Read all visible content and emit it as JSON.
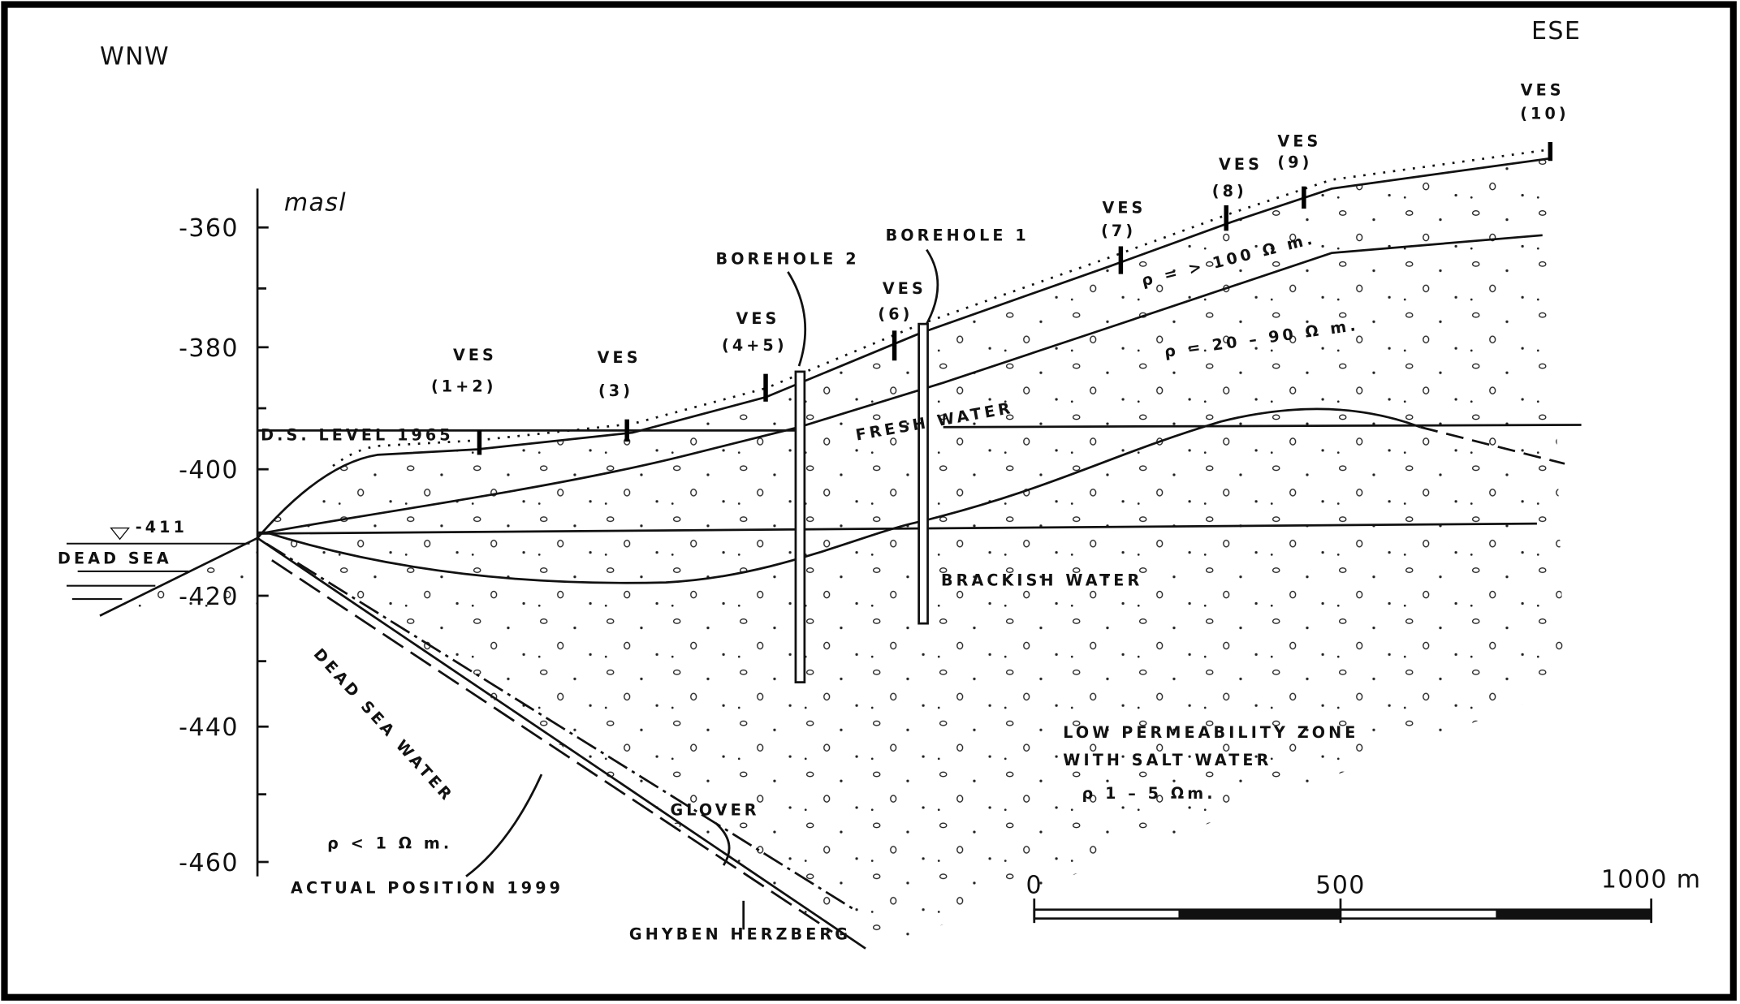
{
  "direction": {
    "left": "WNW",
    "right": "ESE"
  },
  "axis": {
    "unit": "masl",
    "ticks": [
      "-360",
      "-380",
      "-400",
      "-420",
      "-440",
      "-460"
    ]
  },
  "ves": [
    {
      "name": "VES",
      "id": "(1+2)"
    },
    {
      "name": "VES",
      "id": "(3)"
    },
    {
      "name": "VES",
      "id": "(4+5)"
    },
    {
      "name": "VES",
      "id": "(6)"
    },
    {
      "name": "VES",
      "id": "(7)"
    },
    {
      "name": "VES",
      "id": "(8)"
    },
    {
      "name": "VES",
      "id": "(9)"
    },
    {
      "name": "VES",
      "id": "(10)"
    }
  ],
  "boreholes": [
    "BOREHOLE 2",
    "BOREHOLE 1"
  ],
  "sea": {
    "level_label": "D.S. LEVEL 1965",
    "level": "-411",
    "name": "DEAD SEA"
  },
  "zones": {
    "fresh": "FRESH WATER",
    "brackish": "BRACKISH WATER",
    "dead_sea_water": "DEAD SEA WATER",
    "low_perm": [
      "LOW PERMEABILITY ZONE",
      "WITH SALT WATER",
      "ρ 1 – 5 Ωm."
    ]
  },
  "resistivity": [
    "ρ = > 100 Ω m.",
    "ρ = 20 – 90 Ω m.",
    "ρ < 1 Ω m."
  ],
  "interfaces": [
    "GLOVER",
    "ACTUAL POSITION 1999",
    "GHYBEN HERZBERG"
  ],
  "scale": [
    "0",
    "500",
    "1000 m"
  ]
}
